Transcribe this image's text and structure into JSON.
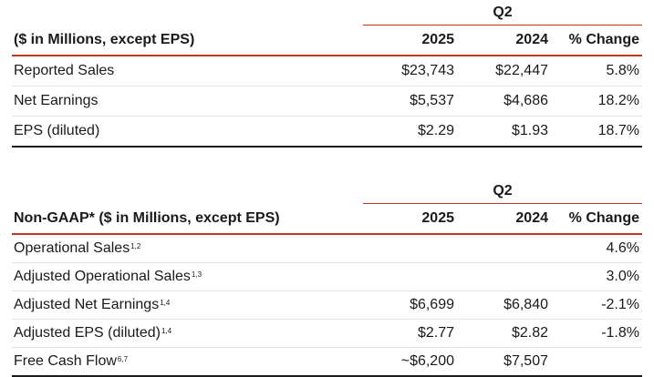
{
  "gaap": {
    "period": "Q2",
    "header": {
      "label": "($ in Millions, except EPS)",
      "col_year1": "2025",
      "col_year2": "2024",
      "col_change": "% Change"
    },
    "rows": [
      {
        "label": "Reported Sales",
        "y2025": "$23,743",
        "y2024": "$22,447",
        "change": "5.8%"
      },
      {
        "label": "Net Earnings",
        "y2025": "$5,537",
        "y2024": "$4,686",
        "change": "18.2%"
      },
      {
        "label": "EPS (diluted)",
        "y2025": "$2.29",
        "y2024": "$1.93",
        "change": "18.7%"
      }
    ]
  },
  "non_gaap": {
    "period": "Q2",
    "header": {
      "label": "Non-GAAP* ($ in Millions, except EPS)",
      "col_year1": "2025",
      "col_year2": "2024",
      "col_change": "% Change"
    },
    "rows": [
      {
        "label": "Operational Sales",
        "sup": "1,2",
        "y2025": "",
        "y2024": "",
        "change": "4.6%"
      },
      {
        "label": "Adjusted Operational Sales",
        "sup": "1,3",
        "y2025": "",
        "y2024": "",
        "change": "3.0%"
      },
      {
        "label": "Adjusted Net Earnings",
        "sup": "1,4",
        "y2025": "$6,699",
        "y2024": "$6,840",
        "change": "-2.1%"
      },
      {
        "label": "Adjusted EPS (diluted)",
        "sup": "1,4",
        "y2025": "$2.77",
        "y2024": "$2.82",
        "change": "-1.8%"
      },
      {
        "label": "Free Cash Flow",
        "sup": "6,7",
        "y2025": "~$6,200",
        "y2024": "$7,507",
        "change": ""
      }
    ]
  }
}
